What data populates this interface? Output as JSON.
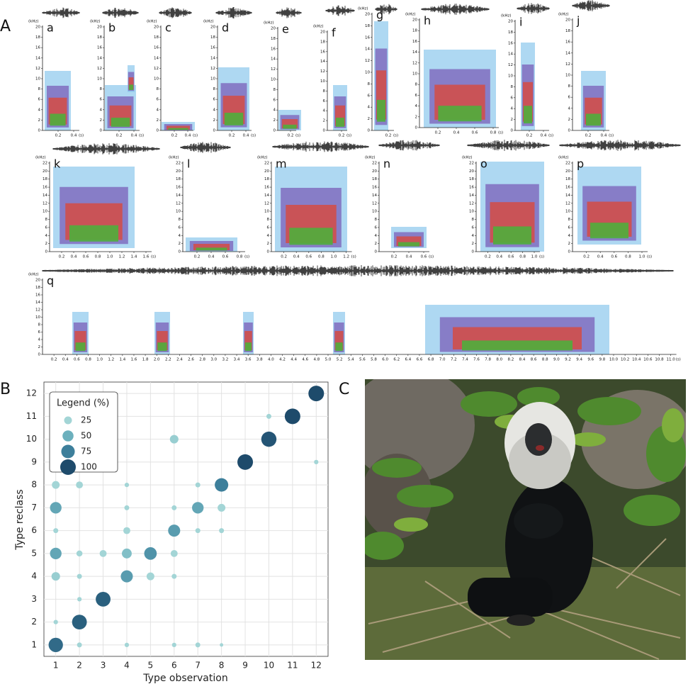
{
  "figure": {
    "panel_labels": [
      "A",
      "B",
      "C"
    ],
    "spectrograms": [
      {
        "label": "a",
        "unit_y": "(kHz)",
        "unit_x": "(s)",
        "ylim": [
          0,
          20
        ],
        "yticks": [
          0,
          2,
          4,
          6,
          8,
          10,
          12,
          14,
          16,
          18,
          20
        ],
        "xticks": [
          "0.2",
          "0.4"
        ]
      },
      {
        "label": "b",
        "unit_y": "(kHz)",
        "unit_x": "(s)",
        "ylim": [
          0,
          20
        ],
        "yticks": [
          0,
          2,
          4,
          6,
          8,
          10,
          12,
          14,
          16,
          18,
          20
        ],
        "xticks": [
          "0.2",
          "0.4"
        ]
      },
      {
        "label": "c",
        "unit_y": "(kHz)",
        "unit_x": "(s)",
        "ylim": [
          0,
          20
        ],
        "yticks": [
          0,
          2,
          4,
          6,
          8,
          10,
          12,
          14,
          16,
          18,
          20
        ],
        "xticks": [
          "0.2",
          "0.4"
        ]
      },
      {
        "label": "d",
        "unit_y": "(kHz)",
        "unit_x": "(s)",
        "ylim": [
          0,
          20
        ],
        "yticks": [
          0,
          2,
          4,
          6,
          8,
          10,
          12,
          14,
          16,
          18,
          20
        ],
        "xticks": [
          "0.2",
          "0.4"
        ]
      },
      {
        "label": "e",
        "unit_y": "(kHz)",
        "unit_x": "(s)",
        "ylim": [
          0,
          20
        ],
        "yticks": [
          0,
          2,
          4,
          6,
          8,
          10,
          12,
          14,
          16,
          18,
          20
        ],
        "xticks": [
          "0.2"
        ]
      },
      {
        "label": "f",
        "unit_y": "(kHz)",
        "unit_x": "(s)",
        "ylim": [
          0,
          20
        ],
        "yticks": [
          0,
          2,
          4,
          6,
          8,
          10,
          12,
          14,
          16,
          18,
          20
        ],
        "xticks": [
          "0.2"
        ]
      },
      {
        "label": "g",
        "unit_y": "(kHz)",
        "unit_x": "(s)",
        "ylim": [
          0,
          20
        ],
        "yticks": [
          0,
          2,
          4,
          6,
          8,
          10,
          12,
          14,
          16,
          18,
          20
        ],
        "xticks": [
          "0.2"
        ]
      },
      {
        "label": "h",
        "unit_y": "(kHz)",
        "unit_x": "(s)",
        "ylim": [
          0,
          20
        ],
        "yticks": [
          0,
          2,
          4,
          6,
          8,
          10,
          12,
          14,
          16,
          18,
          20
        ],
        "xticks": [
          "0.2",
          "0.4",
          "0.6",
          "0.8"
        ]
      },
      {
        "label": "i",
        "unit_y": "(kHz)",
        "unit_x": "(s)",
        "ylim": [
          0,
          20
        ],
        "yticks": [
          0,
          2,
          4,
          6,
          8,
          10,
          12,
          14,
          16,
          18,
          20
        ],
        "xticks": [
          "0.2",
          "0.4"
        ]
      },
      {
        "label": "j",
        "unit_y": "(kHz)",
        "unit_x": "(s)",
        "ylim": [
          0,
          20
        ],
        "yticks": [
          0,
          2,
          4,
          6,
          8,
          10,
          12,
          14,
          16,
          18,
          20
        ],
        "xticks": [
          "0.2",
          "0.4"
        ]
      },
      {
        "label": "k",
        "unit_y": "(kHz)",
        "unit_x": "(s)",
        "ylim": [
          0,
          22
        ],
        "yticks": [
          0,
          2,
          4,
          6,
          8,
          10,
          12,
          14,
          16,
          18,
          20,
          22
        ],
        "xticks": [
          "0.2",
          "0.4",
          "0.6",
          "0.8",
          "1.0",
          "1.2",
          "1.4",
          "1.6"
        ]
      },
      {
        "label": "l",
        "unit_y": "(kHz)",
        "unit_x": "(s)",
        "ylim": [
          0,
          22
        ],
        "yticks": [
          0,
          2,
          4,
          6,
          8,
          10,
          12,
          14,
          16,
          18,
          20,
          22
        ],
        "xticks": [
          "0.2",
          "0.4",
          "0.6",
          "0.8"
        ]
      },
      {
        "label": "m",
        "unit_y": "(kHz)",
        "unit_x": "(s)",
        "ylim": [
          0,
          22
        ],
        "yticks": [
          0,
          2,
          4,
          6,
          8,
          10,
          12,
          14,
          16,
          18,
          20,
          22
        ],
        "xticks": [
          "0.2",
          "0.4",
          "0.6",
          "0.8",
          "1.0",
          "1.2"
        ]
      },
      {
        "label": "n",
        "unit_y": "(kHz)",
        "unit_x": "(s)",
        "ylim": [
          0,
          22
        ],
        "yticks": [
          0,
          2,
          4,
          6,
          8,
          10,
          12,
          14,
          16,
          18,
          20,
          22
        ],
        "xticks": [
          "0.2",
          "0.4",
          "0.6"
        ]
      },
      {
        "label": "o",
        "unit_y": "(kHz)",
        "unit_x": "(s)",
        "ylim": [
          0,
          22
        ],
        "yticks": [
          0,
          2,
          4,
          6,
          8,
          10,
          12,
          14,
          16,
          18,
          20,
          22
        ],
        "xticks": [
          "0.2",
          "0.4",
          "0.6",
          "0.8",
          "1.0"
        ]
      },
      {
        "label": "p",
        "unit_y": "(kHz)",
        "unit_x": "(s)",
        "ylim": [
          0,
          22
        ],
        "yticks": [
          0,
          2,
          4,
          6,
          8,
          10,
          12,
          14,
          16,
          18,
          20,
          22
        ],
        "xticks": [
          "0.2",
          "0.4",
          "0.6",
          "0.8",
          "1.0"
        ]
      },
      {
        "label": "q",
        "unit_y": "(kHz)",
        "unit_x": "(s)",
        "ylim": [
          0,
          20
        ],
        "yticks": [
          0,
          2,
          4,
          6,
          8,
          10,
          12,
          14,
          16,
          18,
          20
        ],
        "xticks": [
          "0.2",
          "0.4",
          "0.6",
          "0.8",
          "1.0",
          "1.2",
          "1.4",
          "1.6",
          "1.8",
          "2.0",
          "2.2",
          "2.4",
          "2.6",
          "2.8",
          "3.0",
          "3.2",
          "3.4",
          "3.6",
          "3.8",
          "4.0",
          "4.2",
          "4.4",
          "4.6",
          "4.8",
          "5.0",
          "5.2",
          "5.4",
          "5.6",
          "5.8",
          "6.0",
          "6.2",
          "6.4",
          "6.6",
          "6.8",
          "7.0",
          "7.2",
          "7.4",
          "7.6",
          "7.8",
          "8.0",
          "8.2",
          "8.4",
          "8.6",
          "8.8",
          "9.0",
          "9.2",
          "9.4",
          "9.6",
          "9.8",
          "10.0",
          "10.2",
          "10.4",
          "10.6",
          "10.8",
          "11.0"
        ]
      }
    ]
  },
  "chart_data": {
    "type": "bubble",
    "x_label": "Type observation",
    "y_label": "Type reclass",
    "x": [
      12,
      10,
      11,
      6,
      10,
      9,
      12,
      1,
      2,
      4,
      7,
      8,
      1,
      4,
      6,
      7,
      8,
      1,
      4,
      6,
      7,
      8,
      1,
      2,
      3,
      4,
      5,
      6,
      1,
      2,
      4,
      5,
      6,
      2,
      3,
      1,
      2,
      1,
      2,
      4,
      6,
      7,
      8
    ],
    "y": [
      12,
      11,
      11,
      10,
      10,
      9,
      9,
      8,
      8,
      8,
      8,
      8,
      7,
      7,
      7,
      7,
      7,
      6,
      6,
      6,
      6,
      6,
      5,
      5,
      5,
      5,
      5,
      5,
      4,
      4,
      4,
      4,
      4,
      3,
      3,
      2,
      2,
      1,
      1,
      1,
      1,
      1,
      1
    ],
    "sizes": [
      100,
      10,
      100,
      30,
      95,
      100,
      8,
      25,
      20,
      8,
      10,
      75,
      55,
      10,
      10,
      55,
      25,
      10,
      20,
      60,
      10,
      10,
      55,
      15,
      20,
      40,
      65,
      20,
      30,
      10,
      60,
      25,
      10,
      8,
      90,
      8,
      90,
      85,
      10,
      8,
      8,
      10,
      5
    ],
    "xlim": [
      0.5,
      12.5
    ],
    "ylim": [
      0.5,
      12.5
    ],
    "xticks": [
      1,
      2,
      3,
      4,
      5,
      6,
      7,
      8,
      9,
      10,
      11,
      12
    ],
    "yticks": [
      1,
      2,
      3,
      4,
      5,
      6,
      7,
      8,
      9,
      10,
      11,
      12
    ],
    "grid": true,
    "legend": {
      "title": "Legend (%)",
      "sizes": [
        25,
        50,
        75,
        100
      ],
      "colors": [
        "#a3d5d6",
        "#6cb0bd",
        "#3d7f9b",
        "#1e4b6b"
      ]
    }
  }
}
